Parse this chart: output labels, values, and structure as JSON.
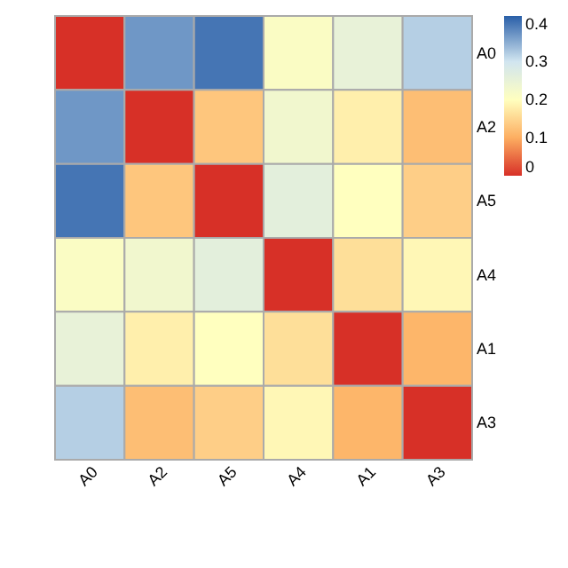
{
  "chart_data": {
    "type": "heatmap",
    "categories": [
      "A0",
      "A2",
      "A5",
      "A4",
      "A1",
      "A3"
    ],
    "y_categories": [
      "A0",
      "A2",
      "A5",
      "A4",
      "A1",
      "A3"
    ],
    "cells": [
      [
        0,
        0.37,
        0.4,
        0.21,
        0.25,
        0.32
      ],
      [
        0.37,
        0,
        0.13,
        0.23,
        0.18,
        0.12
      ],
      [
        0.4,
        0.13,
        0,
        0.26,
        0.2,
        0.14
      ],
      [
        0.21,
        0.23,
        0.26,
        0,
        0.16,
        0.19
      ],
      [
        0.25,
        0.18,
        0.2,
        0.16,
        0,
        0.11
      ],
      [
        0.32,
        0.12,
        0.14,
        0.19,
        0.11,
        0
      ]
    ],
    "clim": [
      0,
      0.42
    ],
    "cticks": [
      0,
      0.1,
      0.2,
      0.3,
      0.4
    ]
  }
}
